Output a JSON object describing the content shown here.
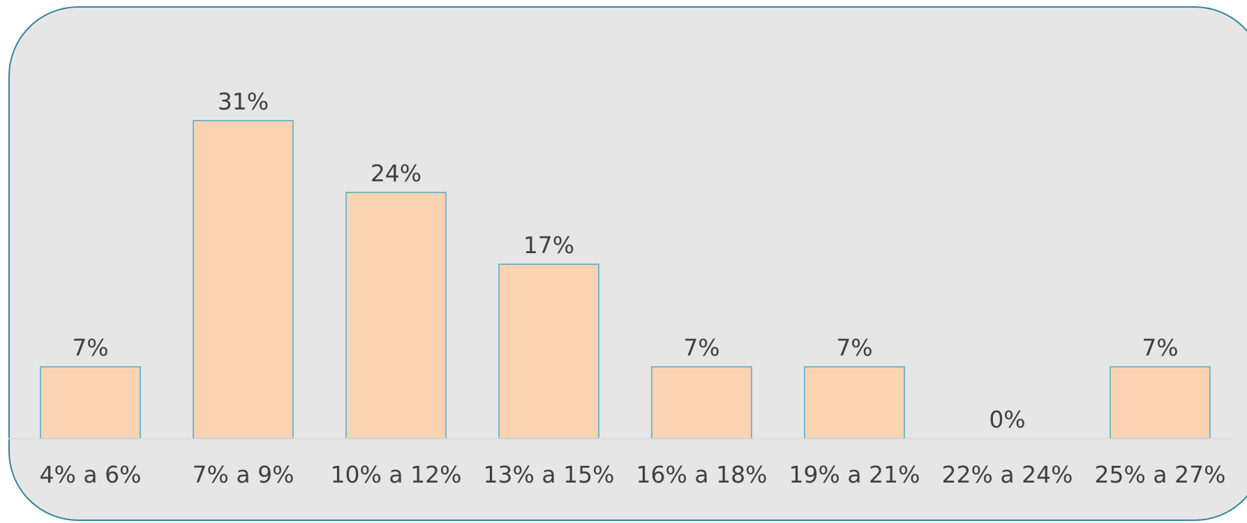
{
  "chart_data": {
    "type": "bar",
    "categories": [
      "4% a 6%",
      "7% a 9%",
      "10% a 12%",
      "13% a 15%",
      "16% a 18%",
      "19% a 21%",
      "22% a 24%",
      "25% a 27%"
    ],
    "values": [
      7,
      31,
      24,
      17,
      7,
      7,
      0,
      7
    ],
    "data_labels": [
      "7%",
      "31%",
      "24%",
      "17%",
      "7%",
      "7%",
      "0%",
      "7%"
    ],
    "title": "",
    "xlabel": "",
    "ylabel": "",
    "ylim": [
      0,
      35
    ],
    "grid": false,
    "legend": "none",
    "colors": {
      "bar_fill": "#fad3b3",
      "bar_stroke": "#4bacc6",
      "frame_border": "#31859c",
      "background": "#e6e6e6",
      "axis_line": "#d9d9d9",
      "text": "#404040"
    }
  }
}
